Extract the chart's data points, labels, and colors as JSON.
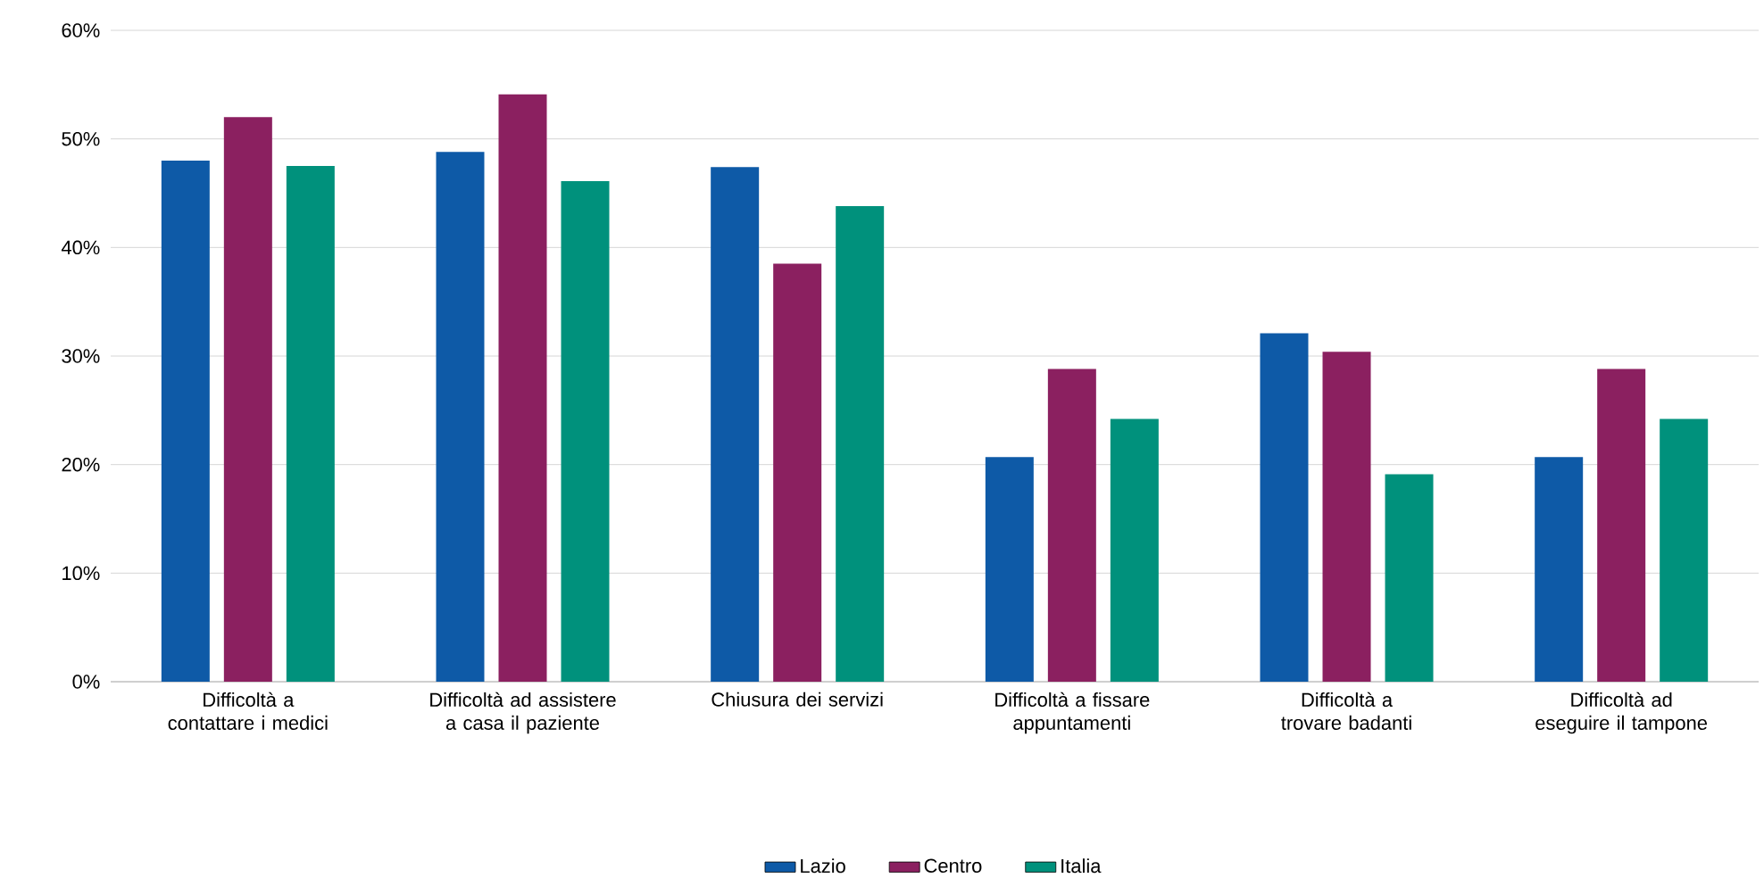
{
  "chart_data": {
    "type": "bar",
    "categories": [
      "Difficoltà a contattare i medici",
      "Difficoltà ad assistere a casa il paziente",
      "Chiusura dei servizi",
      "Difficoltà a fissare appuntamenti",
      "Difficoltà a trovare badanti",
      "Difficoltà ad eseguire il tampone"
    ],
    "series": [
      {
        "name": "Lazio",
        "color": "#0e5aa7",
        "values": [
          48.0,
          48.8,
          47.4,
          20.7,
          32.1,
          20.7
        ]
      },
      {
        "name": "Centro",
        "color": "#8b2060",
        "values": [
          52.0,
          54.1,
          38.5,
          28.8,
          30.4,
          28.8
        ]
      },
      {
        "name": "Italia",
        "color": "#00917c",
        "values": [
          47.5,
          46.1,
          43.8,
          24.2,
          19.1,
          24.2
        ]
      }
    ],
    "ylim": [
      0,
      60
    ],
    "yticks": [
      {
        "value": 0,
        "label": "0%"
      },
      {
        "value": 10,
        "label": "10%"
      },
      {
        "value": 20,
        "label": "20%"
      },
      {
        "value": 30,
        "label": "30%"
      },
      {
        "value": 40,
        "label": "40%"
      },
      {
        "value": 50,
        "label": "50%"
      },
      {
        "value": 60,
        "label": "60%"
      }
    ],
    "grid": "y",
    "legend": "bottom"
  }
}
